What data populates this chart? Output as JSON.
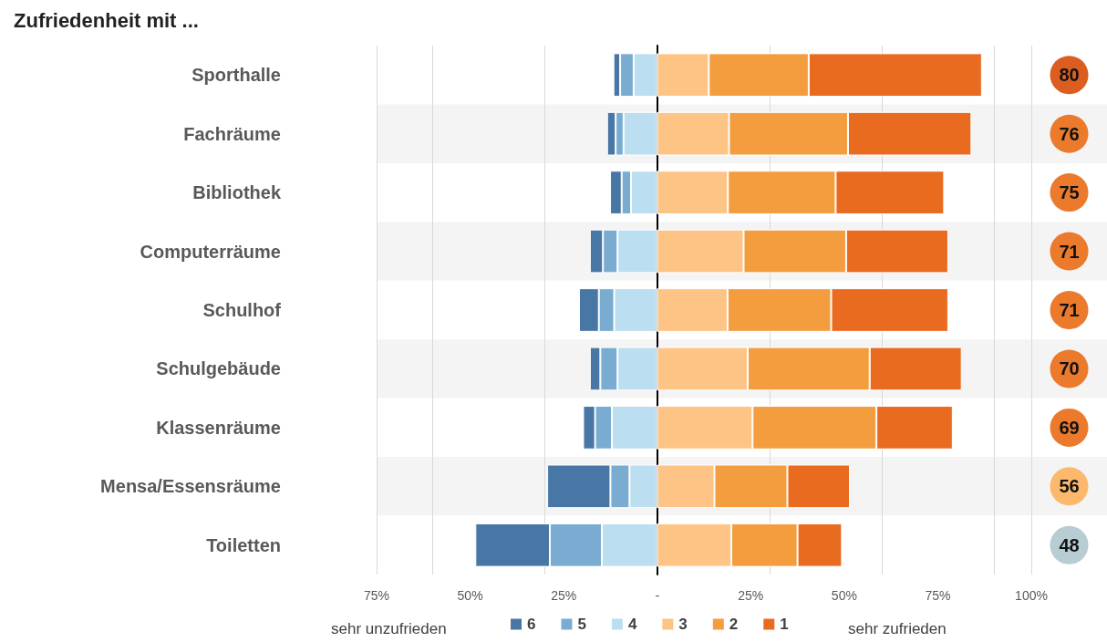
{
  "chart_data": {
    "type": "bar",
    "orientation": "horizontal",
    "stacked": true,
    "title": "Zufriedenheit mit ...",
    "categories": [
      "Sporthalle",
      "Fachräume",
      "Bibliothek",
      "Computerräume",
      "Schulhof",
      "Schulgebäude",
      "Klassenräume",
      "Mensa/Essensräume",
      "Toiletten"
    ],
    "series": [
      {
        "name": "4",
        "color": "#bbdef0",
        "values": [
          -6.3,
          -9.0,
          -7.0,
          -10.6,
          -11.5,
          -10.6,
          -12.1,
          -7.4,
          -14.8
        ]
      },
      {
        "name": "5",
        "color": "#7aabd1",
        "values": [
          -3.6,
          -2.1,
          -2.5,
          -3.9,
          -4.1,
          -4.6,
          -4.5,
          -5.1,
          -13.9
        ]
      },
      {
        "name": "6",
        "color": "#4877a6",
        "values": [
          -1.8,
          -2.3,
          -3.1,
          -3.5,
          -5.3,
          -2.8,
          -3.2,
          -16.9,
          -19.9
        ]
      },
      {
        "name": "3",
        "color": "#fec486",
        "values": [
          13.8,
          19.2,
          18.9,
          23.1,
          18.8,
          24.2,
          25.5,
          15.3,
          19.8
        ]
      },
      {
        "name": "2",
        "color": "#f49d3e",
        "values": [
          26.7,
          31.8,
          28.8,
          27.4,
          27.7,
          32.6,
          33.1,
          19.5,
          17.7
        ]
      },
      {
        "name": "1",
        "color": "#e86b20",
        "values": [
          46.3,
          33.0,
          29.0,
          27.3,
          31.3,
          24.6,
          20.4,
          16.7,
          11.9
        ]
      }
    ],
    "xlim": [
      -75,
      100
    ],
    "xticks": [
      {
        "value": -75,
        "label": "75%"
      },
      {
        "value": -50,
        "label": "50%"
      },
      {
        "value": -25,
        "label": "25%"
      },
      {
        "value": 0,
        "label": "-"
      },
      {
        "value": 25,
        "label": "25%"
      },
      {
        "value": 50,
        "label": "50%"
      },
      {
        "value": 75,
        "label": "75%"
      },
      {
        "value": 100,
        "label": "100%"
      }
    ],
    "grid": "x",
    "legend": "bottom",
    "annotations": [
      "sehr unzufrieden",
      "sehr zufrieden",
      "80",
      "76",
      "75",
      "71",
      "71",
      "70",
      "69",
      "56",
      "48"
    ]
  }
}
